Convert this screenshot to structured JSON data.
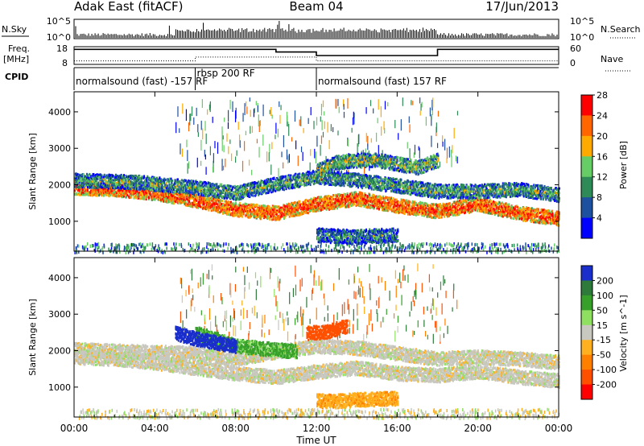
{
  "header": {
    "station": "Adak East (fitACF)",
    "beam": "Beam 04",
    "date": "17/Jun/2013"
  },
  "strips": {
    "nsky_label": "N.Sky",
    "nsky_ticks": [
      "10^5",
      "10^0"
    ],
    "nsearch_label": "N.Search",
    "nsearch_ticks": [
      "10^5",
      "10^0"
    ],
    "freq_label": [
      "Freq.",
      "[MHz]"
    ],
    "freq_ticks": [
      "18",
      "8"
    ],
    "nave_label": "Nave",
    "nave_ticks": [
      "60",
      "0"
    ],
    "cpid_label": "CPID"
  },
  "cpid_segments": [
    {
      "text": "normalsound (fast) -157 RF",
      "start_hour": 0,
      "end_hour": 6
    },
    {
      "text": "rbsp 200 RF",
      "start_hour": 6,
      "end_hour": 12
    },
    {
      "text": "normalsound (fast) 157 RF",
      "start_hour": 12,
      "end_hour": 24
    }
  ],
  "freq_series": [
    {
      "hour": 0,
      "mhz": 16.5
    },
    {
      "hour": 10,
      "mhz": 16.5
    },
    {
      "hour": 10,
      "mhz": 15
    },
    {
      "hour": 12,
      "mhz": 15
    },
    {
      "hour": 12,
      "mhz": 13
    },
    {
      "hour": 18,
      "mhz": 13
    },
    {
      "hour": 18,
      "mhz": 16.5
    },
    {
      "hour": 24,
      "mhz": 16.5
    }
  ],
  "nave_series": [
    {
      "hour": 0,
      "nave": 12
    },
    {
      "hour": 6,
      "nave": 12
    },
    {
      "hour": 6,
      "nave": 25
    },
    {
      "hour": 12,
      "nave": 25
    },
    {
      "hour": 12,
      "nave": 12
    },
    {
      "hour": 24,
      "nave": 12
    }
  ],
  "chart_data": [
    {
      "type": "heatmap",
      "title": "Power",
      "xlabel": "Time UT",
      "ylabel": "Slant Range [km]",
      "xlim": [
        0,
        24
      ],
      "ylim": [
        180,
        4550
      ],
      "x_ticks": [
        "00:00",
        "04:00",
        "08:00",
        "12:00",
        "16:00",
        "20:00",
        "00:00"
      ],
      "y_ticks": [
        1000,
        2000,
        3000,
        4000
      ],
      "colorbar": {
        "label": "Power [dB]",
        "ticks": [
          4,
          8,
          12,
          16,
          20,
          24,
          28
        ],
        "colors": [
          "#0000ff",
          "#1e50a0",
          "#2e8b57",
          "#66cc66",
          "#ffaa00",
          "#ff6600",
          "#ff0000"
        ]
      },
      "bands": [
        {
          "name_hint": "main echo",
          "points": [
            [
              0,
              1950
            ],
            [
              2,
              1900
            ],
            [
              4,
              1800
            ],
            [
              6,
              1600
            ],
            [
              8,
              1350
            ],
            [
              10,
              1250
            ],
            [
              12,
              1500
            ],
            [
              14,
              1650
            ],
            [
              16,
              1450
            ],
            [
              18,
              1300
            ],
            [
              20,
              1500
            ],
            [
              22,
              1250
            ],
            [
              24,
              1100
            ]
          ],
          "power_db": 24
        },
        {
          "name_hint": "upper echo",
          "points": [
            [
              0,
              2150
            ],
            [
              3,
              2100
            ],
            [
              6,
              1950
            ],
            [
              8,
              1800
            ],
            [
              10,
              2050
            ],
            [
              12,
              2250
            ],
            [
              14,
              2150
            ],
            [
              16,
              2000
            ],
            [
              18,
              1850
            ],
            [
              20,
              1850
            ],
            [
              22,
              1900
            ],
            [
              24,
              1750
            ]
          ],
          "power_db": 12
        },
        {
          "name_hint": "far echo",
          "points": [
            [
              12,
              2400
            ],
            [
              13,
              2650
            ],
            [
              14,
              2700
            ],
            [
              15,
              2700
            ],
            [
              16,
              2600
            ],
            [
              17,
              2500
            ],
            [
              18,
              2700
            ]
          ],
          "power_db": 14
        },
        {
          "name_hint": "near echo",
          "points": [
            [
              12,
              650
            ],
            [
              13,
              620
            ],
            [
              14,
              600
            ],
            [
              15,
              630
            ],
            [
              16,
              650
            ]
          ],
          "power_db": 10
        }
      ]
    },
    {
      "type": "heatmap",
      "title": "Velocity",
      "xlabel": "Time UT",
      "ylabel": "Slant Range [km]",
      "xlim": [
        0,
        24
      ],
      "ylim": [
        180,
        4550
      ],
      "x_ticks": [
        "00:00",
        "04:00",
        "08:00",
        "12:00",
        "16:00",
        "20:00",
        "00:00"
      ],
      "y_ticks": [
        1000,
        2000,
        3000,
        4000
      ],
      "colorbar": {
        "label": "Velocity [m s^-1]",
        "ticks": [
          200,
          100,
          50,
          15,
          -15,
          -50,
          -100,
          -200
        ],
        "colors": [
          "#1a2ecc",
          "#2d7a3a",
          "#36a02a",
          "#8fe060",
          "#c8c8c0",
          "#ffb020",
          "#ff8000",
          "#ff5000",
          "#ff0000"
        ]
      },
      "bands": [
        {
          "name_hint": "main echo",
          "points": [
            [
              0,
              1850
            ],
            [
              2,
              1800
            ],
            [
              4,
              1700
            ],
            [
              6,
              1550
            ],
            [
              8,
              1400
            ],
            [
              10,
              1300
            ],
            [
              12,
              1450
            ],
            [
              14,
              1550
            ],
            [
              16,
              1400
            ],
            [
              18,
              1350
            ],
            [
              20,
              1450
            ],
            [
              22,
              1300
            ],
            [
              24,
              1200
            ]
          ],
          "velocity": 0
        },
        {
          "name_hint": "upper echo",
          "points": [
            [
              0,
              2050
            ],
            [
              3,
              2000
            ],
            [
              6,
              1950
            ],
            [
              8,
              1800
            ],
            [
              10,
              2000
            ],
            [
              12,
              2150
            ],
            [
              14,
              2100
            ],
            [
              16,
              1950
            ],
            [
              18,
              1800
            ],
            [
              20,
              1850
            ],
            [
              22,
              1800
            ],
            [
              24,
              1700
            ]
          ],
          "velocity": 0
        },
        {
          "name_hint": "positive patch",
          "points": [
            [
              6,
              2500
            ],
            [
              7,
              2350
            ],
            [
              8,
              2150
            ],
            [
              10,
              2050
            ],
            [
              11,
              2000
            ]
          ],
          "velocity": 60
        },
        {
          "name_hint": "strong patch",
          "points": [
            [
              5,
              2500
            ],
            [
              6,
              2350
            ],
            [
              7,
              2250
            ],
            [
              8,
              2150
            ]
          ],
          "velocity": 220
        },
        {
          "name_hint": "negative patch",
          "points": [
            [
              11.5,
              2500
            ],
            [
              12.5,
              2550
            ],
            [
              13.5,
              2700
            ]
          ],
          "velocity": -180
        },
        {
          "name_hint": "near echo",
          "points": [
            [
              12,
              650
            ],
            [
              13,
              640
            ],
            [
              14,
              680
            ],
            [
              15,
              700
            ],
            [
              16,
              720
            ]
          ],
          "velocity": -40
        }
      ]
    }
  ]
}
